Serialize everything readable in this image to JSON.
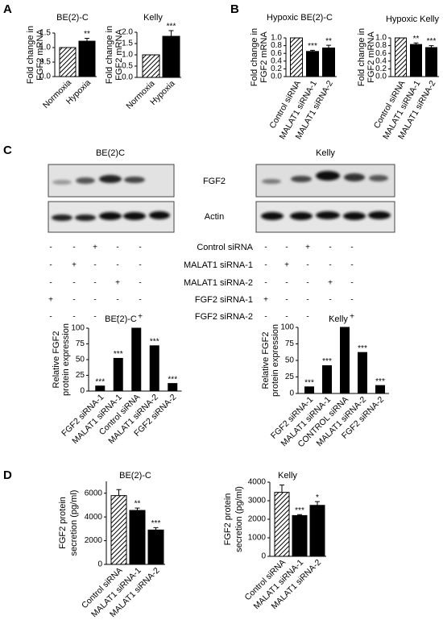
{
  "panels": [
    "A",
    "B",
    "C",
    "D"
  ],
  "blot": {
    "titles": [
      "BE(2)C",
      "Kelly"
    ],
    "proteins": [
      "FGF2",
      "Actin"
    ],
    "rows": [
      {
        "label": "Control siRNA",
        "signs": [
          "-",
          "-",
          "+",
          "-",
          "-",
          "-",
          "-",
          "+",
          "-",
          "-"
        ]
      },
      {
        "label": "MALAT1 siRNA-1",
        "signs": [
          "-",
          "+",
          "-",
          "-",
          "-",
          "-",
          "+",
          "-",
          "-",
          "-"
        ]
      },
      {
        "label": "MALAT1 siRNA-2",
        "signs": [
          "-",
          "-",
          "-",
          "+",
          "-",
          "-",
          "-",
          "-",
          "+",
          "-"
        ]
      },
      {
        "label": "FGF2 siRNA-1",
        "signs": [
          "+",
          "-",
          "-",
          "-",
          "-",
          "+",
          "-",
          "-",
          "-",
          "-"
        ]
      },
      {
        "label": "FGF2 siRNA-2",
        "signs": [
          "-",
          "-",
          "-",
          "-",
          "+",
          "-",
          "-",
          "-",
          "-",
          "+"
        ]
      }
    ]
  },
  "chart_data": [
    {
      "type": "bar",
      "title": "BE(2)-C",
      "ylabel": [
        "Fold change in",
        "FGF2 mRNA"
      ],
      "categories": [
        "Normoxia",
        "Hypoxia"
      ],
      "values": [
        1.0,
        1.22
      ],
      "errors": [
        0,
        0.1
      ],
      "annotations": [
        null,
        "**"
      ],
      "patterns": [
        "hatch",
        "solid"
      ],
      "color": "#000000",
      "ylim": [
        0,
        1.5
      ],
      "yticks": [
        {
          "value": 0,
          "label": "0.0"
        },
        {
          "value": 0.5,
          "label": "0.5"
        },
        {
          "value": 1,
          "label": "1.0"
        },
        {
          "value": 1.5,
          "label": "1.5"
        }
      ]
    },
    {
      "type": "bar",
      "title": "Kelly",
      "ylabel": [
        "Fold change in",
        "FGF2 mRNA"
      ],
      "categories": [
        "Normoxia",
        "Hypoxia"
      ],
      "values": [
        1.0,
        1.82
      ],
      "errors": [
        0,
        0.25
      ],
      "annotations": [
        null,
        "***"
      ],
      "patterns": [
        "hatch",
        "solid"
      ],
      "color": "#000000",
      "ylim": [
        0,
        2
      ],
      "yticks": [
        {
          "value": 0,
          "label": "0.0"
        },
        {
          "value": 0.5,
          "label": "0.5"
        },
        {
          "value": 1,
          "label": "1.0"
        },
        {
          "value": 1.5,
          "label": "1.5"
        },
        {
          "value": 2,
          "label": "2.0"
        }
      ]
    },
    {
      "type": "bar",
      "title": "Hypoxic BE(2)-C",
      "ylabel": [
        "Fold change in",
        "FGF2 mRNA"
      ],
      "categories": [
        "Control siRNA",
        "MALAT1 siRNA-1",
        "MALAT1 siRNA-2"
      ],
      "values": [
        1.0,
        0.65,
        0.74
      ],
      "errors": [
        0,
        0.03,
        0.07
      ],
      "annotations": [
        null,
        "***",
        "**"
      ],
      "patterns": [
        "hatch",
        "solid",
        "solid"
      ],
      "color": "#000000",
      "ylim": [
        0,
        1
      ],
      "yticks": [
        {
          "value": 0,
          "label": "0.0"
        },
        {
          "value": 0.2,
          "label": "0.2"
        },
        {
          "value": 0.4,
          "label": "0.4"
        },
        {
          "value": 0.6,
          "label": "0.6"
        },
        {
          "value": 0.8,
          "label": "0.8"
        },
        {
          "value": 1,
          "label": "1.0"
        }
      ]
    },
    {
      "type": "bar",
      "title": "Hypoxic Kelly",
      "ylabel": [
        "Fold change in",
        "FGF2 mRNA"
      ],
      "categories": [
        "Control siRNA",
        "MALAT1 siRNA-1",
        "MALAT1 siRNA-2"
      ],
      "values": [
        1.0,
        0.83,
        0.75
      ],
      "errors": [
        0,
        0.04,
        0.05
      ],
      "annotations": [
        null,
        "**",
        "***"
      ],
      "patterns": [
        "hatch",
        "solid",
        "solid"
      ],
      "color": "#000000",
      "ylim": [
        0,
        1
      ],
      "yticks": [
        {
          "value": 0,
          "label": "0.0"
        },
        {
          "value": 0.2,
          "label": "0.2"
        },
        {
          "value": 0.4,
          "label": "0.4"
        },
        {
          "value": 0.6,
          "label": "0.6"
        },
        {
          "value": 0.8,
          "label": "0.8"
        },
        {
          "value": 1,
          "label": "1.0"
        }
      ]
    },
    {
      "type": "bar",
      "title": "BE(2)-C",
      "ylabel": [
        "Relative FGF2",
        "protein expression"
      ],
      "categories": [
        "FGF2 siRNA-1",
        "MALAT1 siRNA-1",
        "Control siRNA",
        "MALAT1 siRNA-2",
        "FGF2 siRNA-2"
      ],
      "values": [
        8,
        52,
        100,
        72,
        12
      ],
      "annotations": [
        "***",
        "***",
        null,
        "***",
        "***"
      ],
      "patterns": [
        "solid",
        "solid",
        "solid",
        "solid",
        "solid"
      ],
      "color": "#000000",
      "ylim": [
        0,
        100
      ],
      "yticks": [
        0,
        25,
        50,
        75,
        100
      ]
    },
    {
      "type": "bar",
      "title": "Kelly",
      "ylabel": [
        "Relative FGF2",
        "protein expression"
      ],
      "categories": [
        "FGF2 siRNA-1",
        "MALAT1 siRNA-1",
        "CONTROL siRNA",
        "MALAT1 siRNA-2",
        "FGF2 siRNA-2"
      ],
      "values": [
        10,
        42,
        100,
        62,
        12
      ],
      "annotations": [
        "***",
        "***",
        null,
        "***",
        "***"
      ],
      "patterns": [
        "solid",
        "solid",
        "solid",
        "solid",
        "solid"
      ],
      "color": "#000000",
      "ylim": [
        0,
        100
      ],
      "yticks": [
        0,
        25,
        50,
        75,
        100
      ]
    },
    {
      "type": "bar",
      "title": "BE(2)-C",
      "ylabel": [
        "FGF2 protein",
        "secretion (pg/ml)"
      ],
      "categories": [
        "Control siRNA",
        "MALAT1 siRNA-1",
        "MALAT1 siRNA-2"
      ],
      "values": [
        5800,
        4550,
        2900
      ],
      "errors": [
        500,
        200,
        200
      ],
      "annotations": [
        null,
        "**",
        "***"
      ],
      "patterns": [
        "hatch",
        "solid",
        "solid"
      ],
      "color": "#000000",
      "ylim": [
        0,
        7000
      ],
      "yticks": [
        0,
        2000,
        4000,
        6000
      ]
    },
    {
      "type": "bar",
      "title": "Kelly",
      "ylabel": [
        "FGF2 protein",
        "secretion (pg/ml)"
      ],
      "categories": [
        "Control siRNA",
        "MALAT1 siRNA-1",
        "MALAT1 siRNA-2"
      ],
      "values": [
        3450,
        2200,
        2750
      ],
      "errors": [
        400,
        50,
        200
      ],
      "annotations": [
        null,
        "***",
        "*"
      ],
      "patterns": [
        "hatch",
        "solid",
        "solid"
      ],
      "color": "#000000",
      "ylim": [
        0,
        4000
      ],
      "yticks": [
        0,
        1000,
        2000,
        3000,
        4000
      ]
    }
  ]
}
